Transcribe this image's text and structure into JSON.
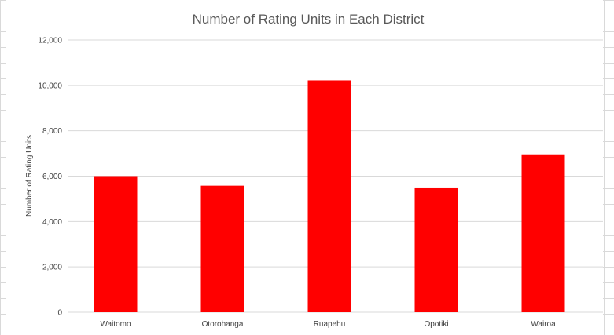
{
  "chart_data": {
    "type": "bar",
    "title": "Number of Rating Units in Each District",
    "xlabel": "",
    "ylabel": "Number of Rating Units",
    "categories": [
      "Waitomo",
      "Otorohanga",
      "Ruapehu",
      "Opotiki",
      "Wairoa"
    ],
    "values": [
      6000,
      5580,
      10220,
      5500,
      6960
    ],
    "ylim": [
      0,
      12000
    ],
    "yticks": [
      0,
      2000,
      4000,
      6000,
      8000,
      10000,
      12000
    ],
    "ytick_labels": [
      "0",
      "2,000",
      "4,000",
      "6,000",
      "8,000",
      "10,000",
      "12,000"
    ],
    "grid": true,
    "legend": "none",
    "bar_color": "#ff0000",
    "gridline_color": "#d9d9d9"
  }
}
